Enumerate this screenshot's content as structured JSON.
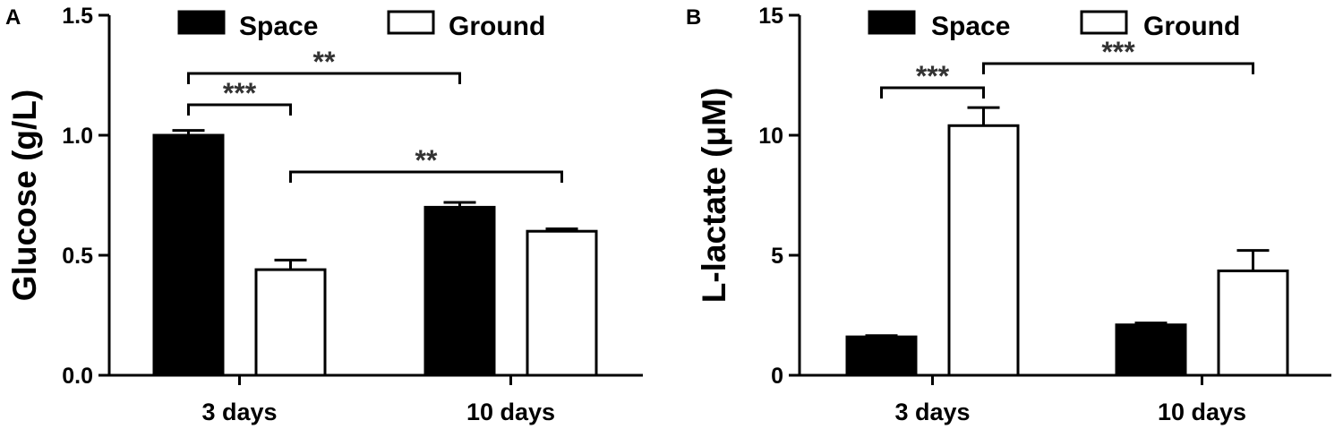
{
  "chart_data": [
    {
      "type": "bar",
      "panel": "A",
      "categories": [
        "3 days",
        "10 days"
      ],
      "series": [
        {
          "name": "Space",
          "values": [
            1.0,
            0.7
          ],
          "errors": [
            0.02,
            0.02
          ],
          "color": "#000000"
        },
        {
          "name": "Ground",
          "values": [
            0.44,
            0.6
          ],
          "errors": [
            0.04,
            0.01
          ],
          "color": "#ffffff"
        }
      ],
      "ylabel": "Glucose (g/L)",
      "xlabel": "",
      "ylim": [
        0,
        1.5
      ],
      "yticks": [
        "0.0",
        "0.5",
        "1.0",
        "1.5"
      ],
      "legend_position": "top",
      "significance": [
        {
          "from": [
            0,
            0
          ],
          "to": [
            1,
            0
          ],
          "label": "**"
        },
        {
          "from": [
            0,
            0
          ],
          "to": [
            0,
            1
          ],
          "label": "***"
        },
        {
          "from": [
            0,
            1
          ],
          "to": [
            1,
            1
          ],
          "label": "**"
        }
      ]
    },
    {
      "type": "bar",
      "panel": "B",
      "categories": [
        "3 days",
        "10 days"
      ],
      "series": [
        {
          "name": "Space",
          "values": [
            1.6,
            2.1
          ],
          "errors": [
            0.05,
            0.08
          ],
          "color": "#000000"
        },
        {
          "name": "Ground",
          "values": [
            10.4,
            4.35
          ],
          "errors": [
            0.75,
            0.85
          ],
          "color": "#ffffff"
        }
      ],
      "ylabel": "L-lactate (μM)",
      "xlabel": "",
      "ylim": [
        0,
        15
      ],
      "yticks": [
        "0",
        "5",
        "10",
        "15"
      ],
      "legend_position": "top",
      "significance": [
        {
          "from": [
            0,
            0
          ],
          "to": [
            0,
            1
          ],
          "label": "***"
        },
        {
          "from": [
            0,
            1
          ],
          "to": [
            1,
            1
          ],
          "label": "***"
        }
      ]
    }
  ]
}
